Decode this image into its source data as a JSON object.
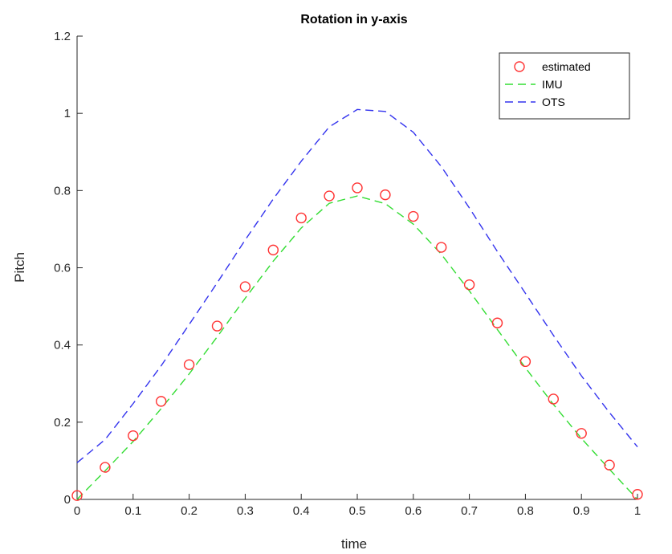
{
  "chart_data": {
    "type": "line",
    "title": "Rotation in y-axis",
    "xlabel": "time",
    "ylabel": "Pitch",
    "xlim": [
      0,
      1
    ],
    "ylim": [
      0,
      1.2
    ],
    "xticks": [
      0,
      0.1,
      0.2,
      0.3,
      0.4,
      0.5,
      0.6,
      0.7,
      0.8,
      0.9,
      1
    ],
    "xtick_labels": [
      "0",
      "0.1",
      "0.2",
      "0.3",
      "0.4",
      "0.5",
      "0.6",
      "0.7",
      "0.8",
      "0.9",
      "1"
    ],
    "yticks": [
      0,
      0.2,
      0.4,
      0.6,
      0.8,
      1,
      1.2
    ],
    "ytick_labels": [
      "0",
      "0.2",
      "0.4",
      "0.6",
      "0.8",
      "1",
      "1.2"
    ],
    "grid": false,
    "legend_position": "top-right",
    "series": [
      {
        "name": "estimated",
        "style": "markers",
        "marker": "circle",
        "color": "#ff3333",
        "x": [
          0,
          0.05,
          0.1,
          0.15,
          0.2,
          0.25,
          0.3,
          0.35,
          0.4,
          0.45,
          0.5,
          0.55,
          0.6,
          0.65,
          0.7,
          0.75,
          0.8,
          0.85,
          0.9,
          0.95,
          1
        ],
        "y": [
          0.01,
          0.083,
          0.165,
          0.254,
          0.349,
          0.449,
          0.551,
          0.646,
          0.729,
          0.786,
          0.807,
          0.789,
          0.733,
          0.653,
          0.556,
          0.457,
          0.357,
          0.26,
          0.171,
          0.089,
          0.013
        ]
      },
      {
        "name": "IMU",
        "style": "dashed",
        "color": "#33dd33",
        "x": [
          0,
          0.05,
          0.1,
          0.15,
          0.2,
          0.25,
          0.3,
          0.35,
          0.4,
          0.45,
          0.5,
          0.55,
          0.6,
          0.65,
          0.7,
          0.75,
          0.8,
          0.85,
          0.9,
          0.95,
          1
        ],
        "y": [
          0,
          0.074,
          0.15,
          0.235,
          0.325,
          0.421,
          0.521,
          0.617,
          0.703,
          0.767,
          0.786,
          0.766,
          0.713,
          0.635,
          0.54,
          0.44,
          0.341,
          0.246,
          0.158,
          0.078,
          0
        ]
      },
      {
        "name": "OTS",
        "style": "dashed",
        "color": "#3333ee",
        "x": [
          0,
          0.05,
          0.1,
          0.15,
          0.2,
          0.25,
          0.3,
          0.35,
          0.4,
          0.45,
          0.5,
          0.55,
          0.6,
          0.65,
          0.7,
          0.75,
          0.8,
          0.85,
          0.9,
          0.95,
          1
        ],
        "y": [
          0.095,
          0.155,
          0.248,
          0.346,
          0.453,
          0.561,
          0.672,
          0.778,
          0.876,
          0.965,
          1.01,
          1.005,
          0.951,
          0.862,
          0.755,
          0.642,
          0.534,
          0.425,
          0.32,
          0.225,
          0.136
        ]
      }
    ]
  }
}
